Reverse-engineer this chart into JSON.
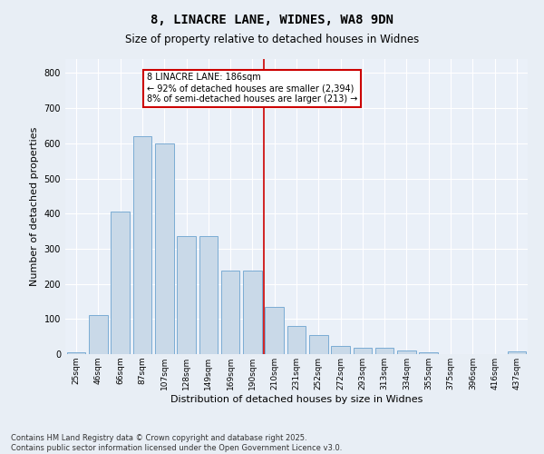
{
  "title": "8, LINACRE LANE, WIDNES, WA8 9DN",
  "subtitle": "Size of property relative to detached houses in Widnes",
  "xlabel": "Distribution of detached houses by size in Widnes",
  "ylabel": "Number of detached properties",
  "categories": [
    "25sqm",
    "46sqm",
    "66sqm",
    "87sqm",
    "107sqm",
    "128sqm",
    "149sqm",
    "169sqm",
    "190sqm",
    "210sqm",
    "231sqm",
    "252sqm",
    "272sqm",
    "293sqm",
    "313sqm",
    "334sqm",
    "355sqm",
    "375sqm",
    "396sqm",
    "416sqm",
    "437sqm"
  ],
  "values": [
    5,
    110,
    405,
    620,
    600,
    335,
    335,
    238,
    238,
    135,
    80,
    53,
    22,
    17,
    17,
    10,
    5,
    1,
    1,
    1,
    7
  ],
  "bar_color": "#c9d9e8",
  "bar_edge_color": "#7bacd4",
  "vline_color": "#cc0000",
  "annotation_text": "8 LINACRE LANE: 186sqm\n← 92% of detached houses are smaller (2,394)\n8% of semi-detached houses are larger (213) →",
  "annotation_box_color": "#ffffff",
  "annotation_box_edge_color": "#cc0000",
  "bg_color": "#e8eef5",
  "plot_bg_color": "#eaf0f8",
  "grid_color": "#ffffff",
  "footnote": "Contains HM Land Registry data © Crown copyright and database right 2025.\nContains public sector information licensed under the Open Government Licence v3.0.",
  "ylim": [
    0,
    840
  ],
  "yticks": [
    0,
    100,
    200,
    300,
    400,
    500,
    600,
    700,
    800
  ]
}
